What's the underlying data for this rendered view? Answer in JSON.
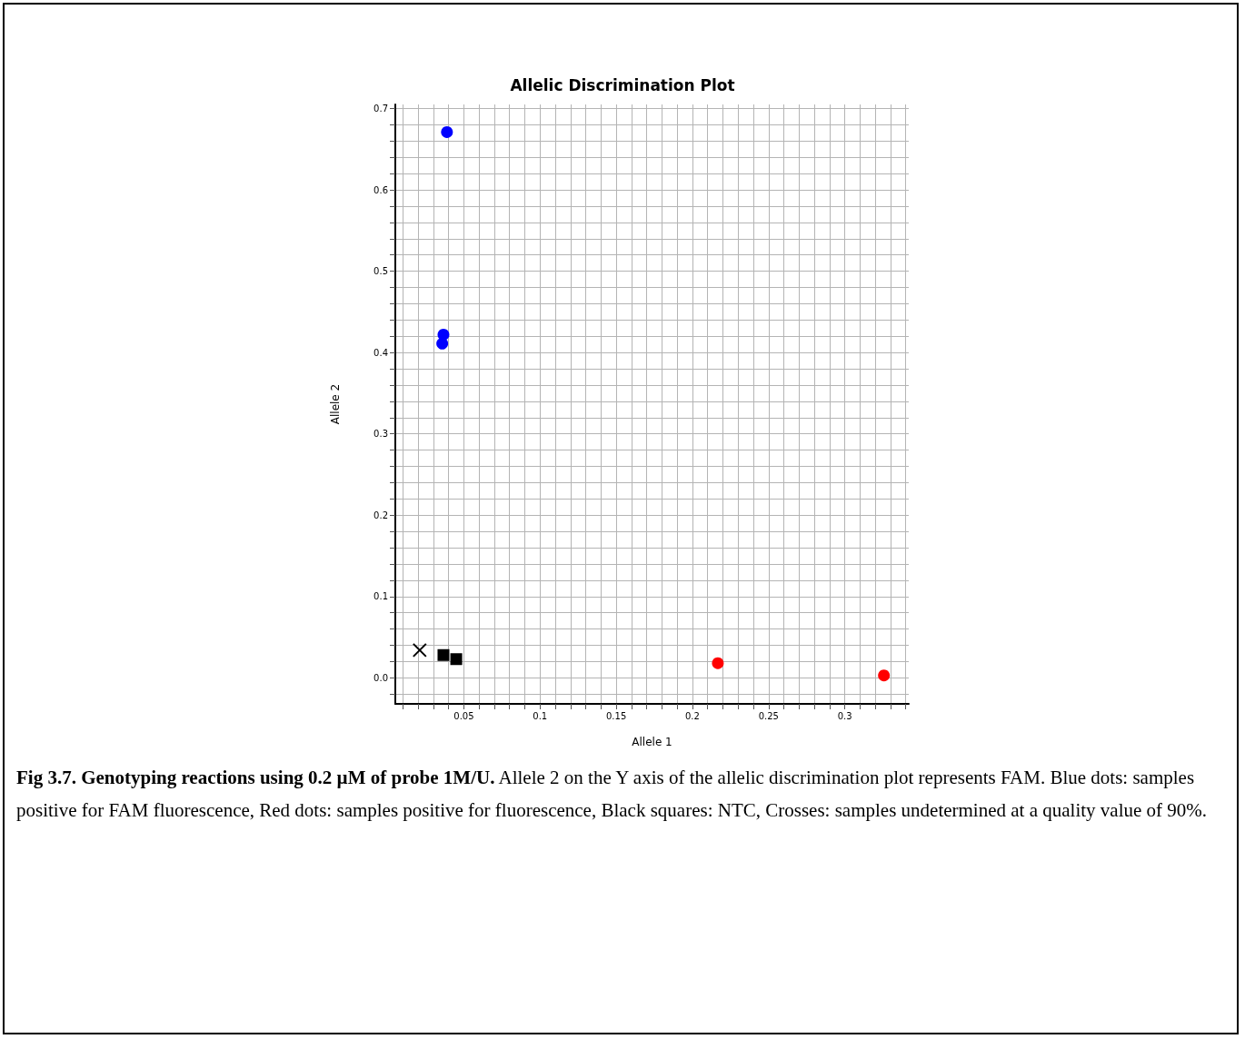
{
  "chart_data": {
    "type": "scatter",
    "title": "Allelic Discrimination Plot",
    "xlabel": "Allele 1",
    "ylabel": "Allele 2",
    "annotations": [
      "Fig 3.7. Genotyping reactions using 0.2 µM of probe 1M/U.",
      "Allele 2 on the Y axis of the allelic discrimination plot represents FAM. Blue dots: samples positive for FAM fluorescence, Red dots: samples positive for fluorescence, Black squares: NTC, Crosses: samples undetermined at a quality value of 90%."
    ],
    "series": [
      {
        "color": "#0000ff",
        "marker": "circle",
        "x": [
          0.0389,
          0.0366,
          0.0358
        ],
        "values": [
          0.671,
          0.422,
          0.411
        ]
      },
      {
        "color": "#ff0000",
        "marker": "circle",
        "x": [
          0.2167,
          0.3257
        ],
        "values": [
          0.018,
          0.003
        ]
      },
      {
        "color": "#000000",
        "marker": "square",
        "x": [
          0.0366,
          0.045
        ],
        "values": [
          0.028,
          0.023
        ]
      },
      {
        "color": "#000000",
        "marker": "cross",
        "x": [
          0.021
        ],
        "values": [
          0.034
        ]
      }
    ],
    "xlim": [
      0.005,
      0.342
    ],
    "ylim": [
      -0.032,
      0.705
    ],
    "xticks": [
      {
        "value": 0.01,
        "label": null
      },
      {
        "value": 0.02,
        "label": null
      },
      {
        "value": 0.03,
        "label": null
      },
      {
        "value": 0.04,
        "label": null
      },
      0.05,
      {
        "value": 0.06,
        "label": null
      },
      {
        "value": 0.07,
        "label": null
      },
      {
        "value": 0.08,
        "label": null
      },
      {
        "value": 0.09,
        "label": null
      },
      0.1,
      {
        "value": 0.11,
        "label": null
      },
      {
        "value": 0.12,
        "label": null
      },
      {
        "value": 0.13,
        "label": null
      },
      {
        "value": 0.14,
        "label": null
      },
      0.15,
      {
        "value": 0.16,
        "label": null
      },
      {
        "value": 0.17,
        "label": null
      },
      {
        "value": 0.18,
        "label": null
      },
      {
        "value": 0.19,
        "label": null
      },
      0.2,
      {
        "value": 0.21,
        "label": null
      },
      {
        "value": 0.22,
        "label": null
      },
      {
        "value": 0.23,
        "label": null
      },
      {
        "value": 0.24,
        "label": null
      },
      0.25,
      {
        "value": 0.26,
        "label": null
      },
      {
        "value": 0.27,
        "label": null
      },
      {
        "value": 0.28,
        "label": null
      },
      {
        "value": 0.29,
        "label": null
      },
      0.3,
      {
        "value": 0.31,
        "label": null
      },
      {
        "value": 0.32,
        "label": null
      },
      {
        "value": 0.33,
        "label": null
      },
      {
        "value": 0.34,
        "label": null
      }
    ],
    "yticks": [
      {
        "value": -0.02,
        "label": null
      },
      {
        "value": 0,
        "label": "0.0"
      },
      {
        "value": 0.02,
        "label": null
      },
      {
        "value": 0.04,
        "label": null
      },
      {
        "value": 0.06,
        "label": null
      },
      {
        "value": 0.08,
        "label": null
      },
      0.1,
      {
        "value": 0.12,
        "label": null
      },
      {
        "value": 0.14,
        "label": null
      },
      {
        "value": 0.16,
        "label": null
      },
      {
        "value": 0.18,
        "label": null
      },
      0.2,
      {
        "value": 0.22,
        "label": null
      },
      {
        "value": 0.24,
        "label": null
      },
      {
        "value": 0.26,
        "label": null
      },
      {
        "value": 0.28,
        "label": null
      },
      0.3,
      {
        "value": 0.32,
        "label": null
      },
      {
        "value": 0.34,
        "label": null
      },
      {
        "value": 0.36,
        "label": null
      },
      {
        "value": 0.38,
        "label": null
      },
      0.4,
      {
        "value": 0.42,
        "label": null
      },
      {
        "value": 0.44,
        "label": null
      },
      {
        "value": 0.46,
        "label": null
      },
      {
        "value": 0.48,
        "label": null
      },
      0.5,
      {
        "value": 0.52,
        "label": null
      },
      {
        "value": 0.54,
        "label": null
      },
      {
        "value": 0.56,
        "label": null
      },
      {
        "value": 0.58,
        "label": null
      },
      0.6,
      {
        "value": 0.62,
        "label": null
      },
      {
        "value": 0.64,
        "label": null
      },
      {
        "value": 0.66,
        "label": null
      },
      {
        "value": 0.68,
        "label": null
      },
      0.7
    ],
    "grid": true
  }
}
